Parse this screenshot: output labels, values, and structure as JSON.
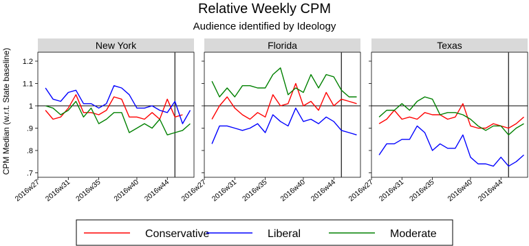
{
  "chart_data": {
    "type": "line",
    "title": "Relative Weekly CPM",
    "subtitle": "Audience identified by Ideology",
    "ylabel": "CPM Median (w.r.t. State baseline)",
    "ylim": [
      0.68,
      1.24
    ],
    "yticks": [
      0.7,
      0.8,
      0.9,
      1,
      1.1,
      1.2
    ],
    "ytick_labels": [
      ".7",
      ".8",
      ".9",
      "1",
      "1.1",
      "1.2"
    ],
    "xlim": [
      27,
      47.5
    ],
    "xticks": [
      27,
      31,
      35,
      40,
      44
    ],
    "xtick_labels": [
      "2016w27",
      "2016w31",
      "2016w35",
      "2016w40",
      "2016w44"
    ],
    "reference_line_y": 1,
    "event_line_x": 45,
    "grid": false,
    "legend_position": "bottom",
    "x": [
      28,
      29,
      30,
      31,
      32,
      33,
      34,
      35,
      36,
      37,
      38,
      39,
      40,
      41,
      42,
      43,
      44,
      45,
      46,
      47
    ],
    "series_style": [
      {
        "name": "Conservative",
        "color": "#ff0000"
      },
      {
        "name": "Liberal",
        "color": "#0000ff"
      },
      {
        "name": "Moderate",
        "color": "#008000"
      }
    ],
    "panels": [
      {
        "name": "New York",
        "series": [
          {
            "name": "Conservative",
            "values": [
              0.98,
              0.94,
              0.95,
              0.99,
              1.05,
              0.97,
              0.97,
              0.96,
              0.98,
              1.04,
              1.03,
              0.95,
              0.95,
              0.94,
              0.97,
              0.94,
              1.03,
              0.95,
              0.96,
              null
            ]
          },
          {
            "name": "Liberal",
            "values": [
              1.08,
              1.03,
              1.02,
              1.06,
              1.07,
              1.01,
              1.01,
              0.99,
              1.01,
              1.09,
              1.08,
              1.05,
              0.99,
              0.99,
              1.0,
              0.98,
              0.97,
              1.02,
              0.92,
              0.98
            ]
          },
          {
            "name": "Moderate",
            "values": [
              1.0,
              0.99,
              0.96,
              0.98,
              1.02,
              0.95,
              0.99,
              0.92,
              0.94,
              0.97,
              0.97,
              0.88,
              0.9,
              0.92,
              0.9,
              0.94,
              0.87,
              0.88,
              0.89,
              0.92
            ]
          }
        ]
      },
      {
        "name": "Florida",
        "series": [
          {
            "name": "Conservative",
            "values": [
              0.94,
              1.0,
              1.04,
              0.99,
              0.96,
              0.94,
              0.97,
              0.95,
              1.05,
              1.0,
              1.01,
              1.1,
              1.0,
              1.02,
              0.98,
              1.06,
              1.0,
              1.03,
              1.02,
              1.01
            ]
          },
          {
            "name": "Liberal",
            "values": [
              0.83,
              0.91,
              0.91,
              0.9,
              0.89,
              0.9,
              0.92,
              0.88,
              0.96,
              0.93,
              0.91,
              0.99,
              0.93,
              0.94,
              0.92,
              0.95,
              0.93,
              0.89,
              0.88,
              0.87
            ]
          },
          {
            "name": "Moderate",
            "values": [
              1.11,
              1.04,
              1.08,
              1.04,
              1.09,
              1.09,
              1.08,
              1.08,
              1.14,
              1.17,
              1.05,
              1.08,
              1.06,
              1.14,
              1.08,
              1.14,
              1.13,
              1.07,
              1.04,
              1.04
            ]
          }
        ]
      },
      {
        "name": "Texas",
        "series": [
          {
            "name": "Conservative",
            "values": [
              0.92,
              0.94,
              0.98,
              0.94,
              0.95,
              0.94,
              0.97,
              0.96,
              0.96,
              0.94,
              0.95,
              1.01,
              0.91,
              0.9,
              0.9,
              0.92,
              0.91,
              0.9,
              0.92,
              0.95
            ]
          },
          {
            "name": "Liberal",
            "values": [
              0.78,
              0.83,
              0.83,
              0.85,
              0.85,
              0.91,
              0.88,
              0.8,
              0.83,
              0.81,
              0.81,
              0.87,
              0.77,
              0.74,
              0.74,
              0.73,
              0.77,
              0.73,
              0.75,
              0.78
            ]
          },
          {
            "name": "Moderate",
            "values": [
              0.95,
              0.98,
              0.98,
              1.01,
              0.98,
              1.02,
              1.04,
              1.03,
              0.96,
              0.97,
              0.97,
              0.96,
              0.94,
              0.91,
              0.89,
              0.91,
              0.91,
              0.87,
              0.9,
              0.92
            ]
          }
        ]
      }
    ]
  }
}
